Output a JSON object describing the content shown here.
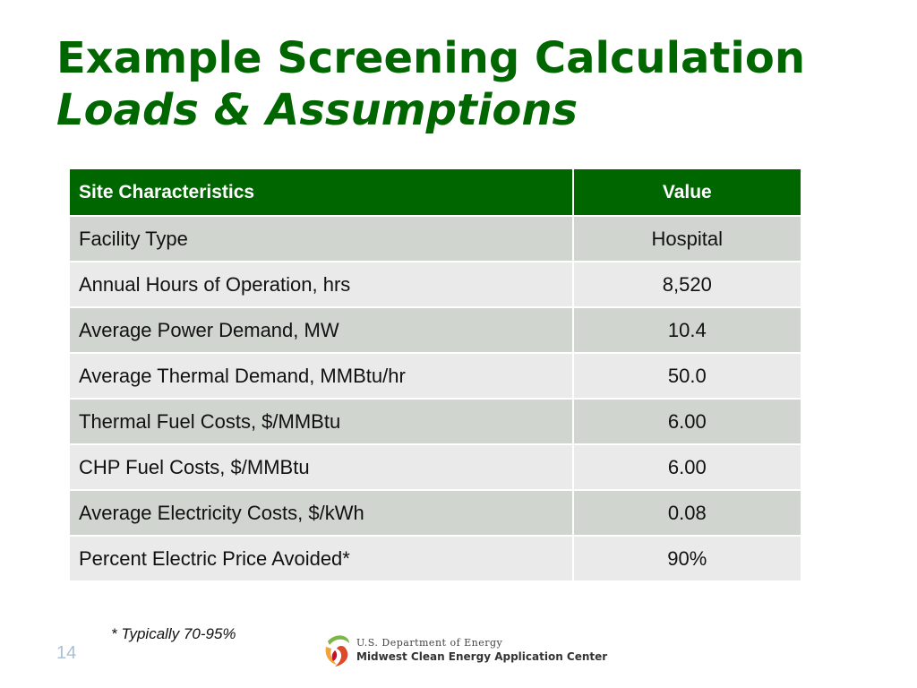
{
  "slide": {
    "title": "Example Screening Calculation",
    "subtitle": "Loads & Assumptions",
    "footnote": "* Typically 70-95%",
    "page_number": "14"
  },
  "table": {
    "headers": [
      "Site Characteristics",
      "Value"
    ],
    "rows": [
      {
        "name": "Facility Type",
        "value": "Hospital"
      },
      {
        "name": "Annual Hours of Operation, hrs",
        "value": "8,520"
      },
      {
        "name": "Average Power Demand, MW",
        "value": "10.4"
      },
      {
        "name": "Average Thermal Demand, MMBtu/hr",
        "value": "50.0"
      },
      {
        "name": "Thermal Fuel Costs, $/MMBtu",
        "value": "6.00"
      },
      {
        "name": "CHP Fuel Costs, $/MMBtu",
        "value": "6.00"
      },
      {
        "name": "Average Electricity Costs, $/kWh",
        "value": "0.08"
      },
      {
        "name": "Percent Electric Price Avoided*",
        "value": "90%"
      }
    ]
  },
  "logo": {
    "line1": "U.S. Department of Energy",
    "line2": "Midwest Clean Energy Application Center",
    "icon": "energy-swirl-icon"
  },
  "colors": {
    "title_green": "#006600",
    "header_green": "#006600",
    "row_dark": "#d0d5d0",
    "row_light": "#e9eae9"
  }
}
